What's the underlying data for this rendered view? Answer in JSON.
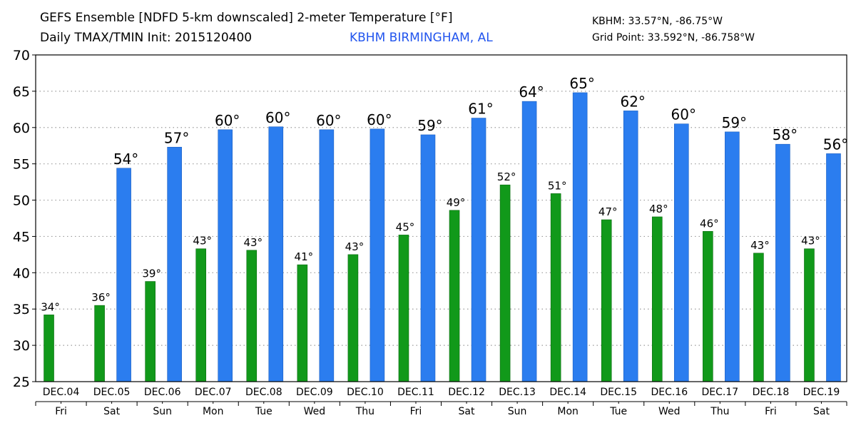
{
  "header": {
    "title_line1": "GEFS Ensemble [NDFD 5-km downscaled] 2-meter Temperature [°F]",
    "title_line2": "Daily TMAX/TMIN Init: 2015120400",
    "station": "KBHM BIRMINGHAM, AL",
    "station_coords": "KBHM: 33.57°N, -86.75°W",
    "grid_point": "Grid Point: 33.592°N, -86.758°W"
  },
  "colors": {
    "tmax_bar": "#2b7def",
    "tmin_bar": "#11991a",
    "grid": "#9a9a9a",
    "station_text": "#2255ee"
  },
  "chart_data": {
    "type": "bar",
    "title": "GEFS Ensemble [NDFD 5-km downscaled] 2-meter Temperature [°F]",
    "ylim": [
      25,
      70
    ],
    "yticks": [
      25,
      30,
      35,
      40,
      45,
      50,
      55,
      60,
      65,
      70
    ],
    "grid": true,
    "dates": [
      "DEC.04",
      "DEC.05",
      "DEC.06",
      "DEC.07",
      "DEC.08",
      "DEC.09",
      "DEC.10",
      "DEC.11",
      "DEC.12",
      "DEC.13",
      "DEC.14",
      "DEC.15",
      "DEC.16",
      "DEC.17",
      "DEC.18",
      "DEC.19"
    ],
    "days": [
      "Fri",
      "Sat",
      "Sun",
      "Mon",
      "Tue",
      "Wed",
      "Thu",
      "Fri",
      "Sat",
      "Sun",
      "Mon",
      "Tue",
      "Wed",
      "Thu",
      "Fri",
      "Sat"
    ],
    "series": [
      {
        "key": "tmin",
        "values": [
          34.2,
          35.5,
          38.8,
          43.3,
          43.1,
          41.1,
          42.5,
          45.2,
          48.6,
          52.1,
          50.9,
          47.3,
          47.7,
          45.7,
          42.7,
          43.3
        ],
        "labels": [
          "34°",
          "36°",
          "39°",
          "43°",
          "43°",
          "41°",
          "43°",
          "45°",
          "49°",
          "52°",
          "51°",
          "47°",
          "48°",
          "46°",
          "43°",
          "43°"
        ]
      },
      {
        "key": "tmax",
        "values": [
          null,
          54.4,
          57.3,
          59.7,
          60.1,
          59.7,
          59.8,
          59.0,
          61.3,
          63.6,
          64.8,
          62.3,
          60.5,
          59.4,
          57.7,
          56.4
        ],
        "labels": [
          null,
          "54°",
          "57°",
          "60°",
          "60°",
          "60°",
          "60°",
          "59°",
          "61°",
          "64°",
          "65°",
          "62°",
          "60°",
          "59°",
          "58°",
          "56°"
        ]
      }
    ]
  }
}
